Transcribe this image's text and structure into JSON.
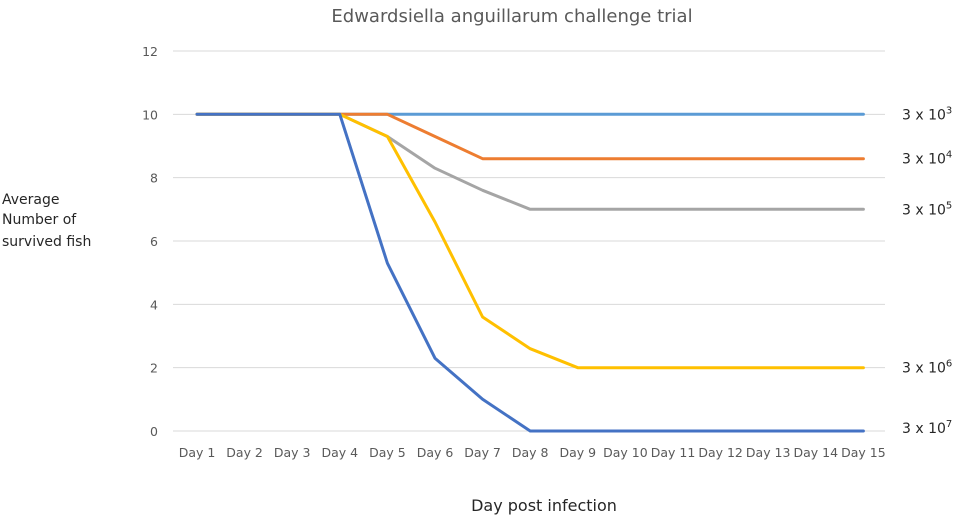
{
  "chart_data": {
    "type": "line",
    "title": "Edwardsiella anguillarum challenge trial",
    "xlabel": "Day post infection",
    "ylabel": [
      "Average",
      "Number of",
      "survived fish"
    ],
    "categories": [
      "Day 1",
      "Day 2",
      "Day 3",
      "Day 4",
      "Day 5",
      "Day 6",
      "Day 7",
      "Day 8",
      "Day 9",
      "Day 10",
      "Day 11",
      "Day 12",
      "Day 13",
      "Day 14",
      "Day 15"
    ],
    "ylim": [
      0,
      12
    ],
    "yticks": [
      0,
      2,
      4,
      6,
      8,
      10,
      12
    ],
    "grid": true,
    "series": [
      {
        "label_base": "3 x 10",
        "label_exp": "3",
        "color": "#5b9bd5",
        "values": [
          10,
          10,
          10,
          10,
          10,
          10,
          10,
          10,
          10,
          10,
          10,
          10,
          10,
          10,
          10
        ]
      },
      {
        "label_base": "3 x 10",
        "label_exp": "4",
        "color": "#ed7d31",
        "values": [
          10,
          10,
          10,
          10,
          10,
          9.3,
          8.6,
          8.6,
          8.6,
          8.6,
          8.6,
          8.6,
          8.6,
          8.6,
          8.6
        ]
      },
      {
        "label_base": "3 x 10",
        "label_exp": "5",
        "color": "#a5a5a5",
        "values": [
          10,
          10,
          10,
          10,
          9.3,
          8.3,
          7.6,
          7,
          7,
          7,
          7,
          7,
          7,
          7,
          7
        ]
      },
      {
        "label_base": "3 x 10",
        "label_exp": "6",
        "color": "#ffc000",
        "values": [
          10,
          10,
          10,
          10,
          9.3,
          6.6,
          3.6,
          2.6,
          2,
          2,
          2,
          2,
          2,
          2,
          2
        ]
      },
      {
        "label_base": "3 x 10",
        "label_exp": "7",
        "color": "#4472c4",
        "values": [
          10,
          10,
          10,
          10,
          5.3,
          2.3,
          1,
          0,
          0,
          0,
          0,
          0,
          0,
          0,
          0
        ]
      }
    ]
  }
}
